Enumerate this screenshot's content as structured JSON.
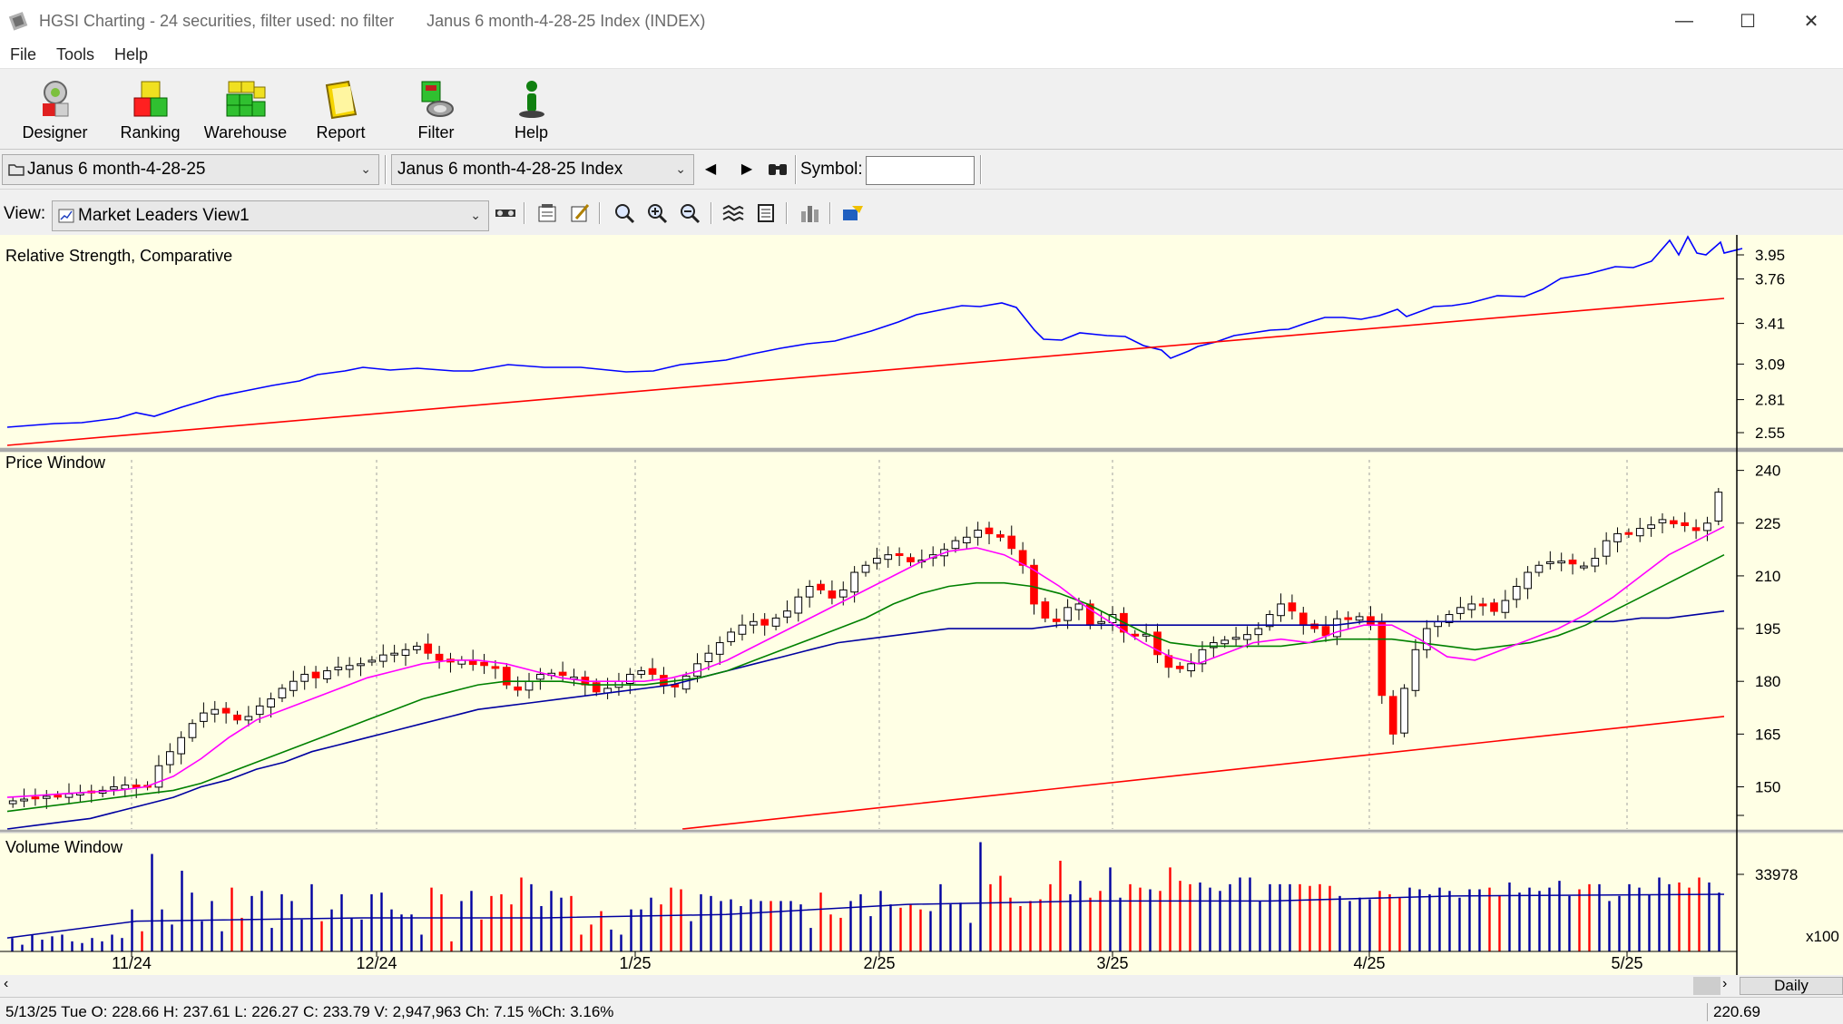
{
  "window": {
    "title": "HGSI Charting - 24 securities, filter used: no filter",
    "subtitle": "Janus 6 month-4-28-25 Index (INDEX)"
  },
  "menu": [
    "File",
    "Tools",
    "Help"
  ],
  "toolbar": [
    {
      "label": "Designer",
      "icon": "designer-icon"
    },
    {
      "label": "Ranking",
      "icon": "ranking-icon"
    },
    {
      "label": "Warehouse",
      "icon": "warehouse-icon"
    },
    {
      "label": "Report",
      "icon": "report-icon"
    },
    {
      "label": "Filter",
      "icon": "filter-icon"
    },
    {
      "label": "Help",
      "icon": "help-icon"
    }
  ],
  "selectors": {
    "list": "Janus 6 month-4-28-25",
    "security": "Janus 6 month-4-28-25 Index",
    "symbol_label": "Symbol:",
    "symbol_value": ""
  },
  "view": {
    "label": "View:",
    "value": "Market Leaders View1"
  },
  "panels": {
    "rs_title": "Relative Strength, Comparative",
    "price_title": "Price Window",
    "volume_title": "Volume Window"
  },
  "status": {
    "info": "5/13/25 Tue O: 228.66 H: 237.61 L: 226.27 C: 233.79 V: 2,947,963 Ch: 7.15 %Ch: 3.16%",
    "price": "220.69",
    "period": "Daily"
  },
  "colors": {
    "panel_bg": "#ffffe5",
    "up_candle": "#ffffff",
    "down_candle": "#ff0000",
    "ma_fast": "#ff00ff",
    "ma_mid": "#008000",
    "ma_slow": "#0000a0",
    "ma_long": "#ff0000",
    "rs_line": "#0000ff",
    "volume_up": "#0000a0",
    "volume_down": "#ff0000"
  },
  "chart_data": [
    {
      "type": "line",
      "title": "Relative Strength, Comparative",
      "y_ticks": [
        2.55,
        2.81,
        3.09,
        3.41,
        3.76,
        3.95
      ],
      "ylim": [
        2.45,
        4.05
      ],
      "series": []
    },
    {
      "type": "candlestick",
      "title": "Price Window",
      "x_ticks": [
        "11/24",
        "12/24",
        "1/25",
        "2/25",
        "3/25",
        "4/25",
        "5/25"
      ],
      "y_ticks": [
        150,
        165,
        180,
        195,
        210,
        225,
        240
      ],
      "ylim": [
        138,
        243
      ],
      "close": [
        146,
        146.5,
        147,
        147.3,
        147.6,
        148,
        148.2,
        148.5,
        149,
        150,
        150.5,
        149.8,
        150.2,
        156,
        160,
        164,
        168,
        171,
        172,
        171,
        169,
        170,
        173,
        175,
        178,
        180,
        182,
        181,
        183,
        184,
        184.5,
        185,
        186,
        187.5,
        188,
        189,
        190,
        188,
        186,
        185.5,
        186,
        184.8,
        184.5,
        183.7,
        179,
        177.5,
        180,
        182,
        182.3,
        181.7,
        181.2,
        179,
        177,
        178,
        180,
        182,
        183,
        182,
        178.8,
        178.4,
        181.5,
        185,
        188,
        191,
        194,
        196,
        197,
        196,
        198,
        200,
        204,
        207,
        206,
        203.7,
        206,
        211,
        213,
        215,
        216,
        215.8,
        214,
        214.5,
        216,
        217.5,
        220,
        221,
        223,
        222,
        221,
        217.8,
        213,
        202,
        198,
        197,
        201,
        202,
        196,
        197,
        199,
        194,
        193,
        193.4,
        187.6,
        184,
        183.6,
        185,
        189,
        191,
        191.7,
        192.5,
        193.3,
        195,
        199,
        202,
        200,
        196.3,
        195,
        193,
        197.8,
        198,
        198.4,
        196.3,
        176,
        165,
        178,
        189,
        195,
        197,
        199,
        201,
        202,
        201.7,
        199.9,
        203,
        207,
        211,
        213,
        214,
        214.2,
        213.4,
        212.8,
        215,
        220,
        222,
        222,
        223.5,
        224.5,
        226,
        224.8,
        224.3,
        222.9,
        225,
        233.8
      ],
      "ma_fast": [
        147,
        147.5,
        148,
        148.5,
        149,
        150,
        153,
        158,
        164,
        169,
        172,
        175,
        178,
        181,
        183,
        185,
        186,
        186,
        185,
        183,
        181,
        180,
        180,
        180,
        181,
        183,
        186,
        190,
        194,
        198,
        202,
        206,
        210,
        214,
        217,
        218,
        216,
        212,
        207,
        201,
        196,
        191,
        187,
        185,
        188,
        191,
        192,
        191,
        194,
        196,
        196,
        192,
        187,
        186,
        189,
        192,
        195,
        199,
        204,
        210,
        216,
        220,
        224
      ],
      "ma_mid": [
        143,
        144,
        145,
        146,
        147,
        148,
        149,
        151,
        154,
        157,
        160,
        163,
        166,
        169,
        172,
        175,
        177,
        179,
        180,
        180,
        180,
        179,
        179,
        179,
        180,
        181,
        183,
        186,
        189,
        192,
        195,
        198,
        202,
        205,
        207,
        208,
        208,
        207,
        205,
        202,
        198,
        194,
        191,
        190,
        190,
        190,
        190,
        191,
        192,
        192,
        192,
        191,
        190,
        189,
        190,
        191,
        193,
        196,
        200,
        204,
        208,
        212,
        216
      ],
      "ma_slow": [
        138,
        139,
        140,
        141,
        143,
        145,
        147,
        150,
        152,
        155,
        157,
        160,
        162,
        164,
        166,
        168,
        170,
        172,
        173,
        174,
        175,
        176,
        177,
        178,
        179,
        181,
        183,
        185,
        187,
        189,
        191,
        192,
        193,
        194,
        195,
        195,
        195,
        195,
        196,
        196,
        196,
        196,
        196,
        196,
        196,
        196,
        196,
        196,
        196,
        197,
        197,
        197,
        197,
        197,
        197,
        197,
        197,
        197,
        197,
        198,
        198,
        199,
        200
      ],
      "ma_long_span": [
        138,
        170
      ]
    },
    {
      "type": "bar",
      "title": "Volume Window",
      "y_ticks": [
        33978
      ],
      "y_unit": "x100",
      "values": [
        8,
        4,
        10,
        7,
        9,
        10,
        6,
        5,
        8,
        6,
        10,
        8,
        25,
        12,
        58,
        25,
        16,
        48,
        35,
        18,
        30,
        12,
        38,
        20,
        33,
        36,
        14,
        34,
        30,
        19,
        40,
        18,
        25,
        34,
        20,
        19,
        34,
        35,
        25,
        22,
        22,
        10,
        38,
        34,
        6,
        30,
        36,
        19,
        33,
        34,
        28,
        44,
        40,
        27,
        36,
        32,
        33,
        10,
        16,
        24,
        13,
        10,
        25,
        25,
        32,
        28,
        38,
        37,
        18,
        34,
        33,
        30,
        31,
        27,
        31,
        30,
        30,
        30,
        30,
        28,
        14,
        35,
        22,
        20,
        30,
        34,
        21,
        36,
        28,
        26,
        28,
        25,
        24,
        40,
        28,
        29,
        17,
        65,
        40,
        45,
        32,
        27,
        30,
        31,
        40,
        54,
        34,
        42,
        32,
        36,
        50,
        32,
        40,
        38,
        37,
        36,
        50,
        42,
        40,
        41,
        38,
        36,
        40,
        44,
        44,
        30,
        40,
        40,
        40,
        40,
        39,
        40,
        39,
        33,
        30,
        32,
        31,
        36,
        34,
        32,
        38,
        37,
        34,
        38,
        36,
        32,
        37,
        37,
        38,
        33,
        41,
        35,
        38,
        36,
        38,
        42,
        33,
        37,
        40,
        40,
        30,
        33,
        40,
        38,
        34,
        44,
        40,
        41,
        38,
        44,
        41,
        35
      ],
      "avg": 30
    }
  ]
}
